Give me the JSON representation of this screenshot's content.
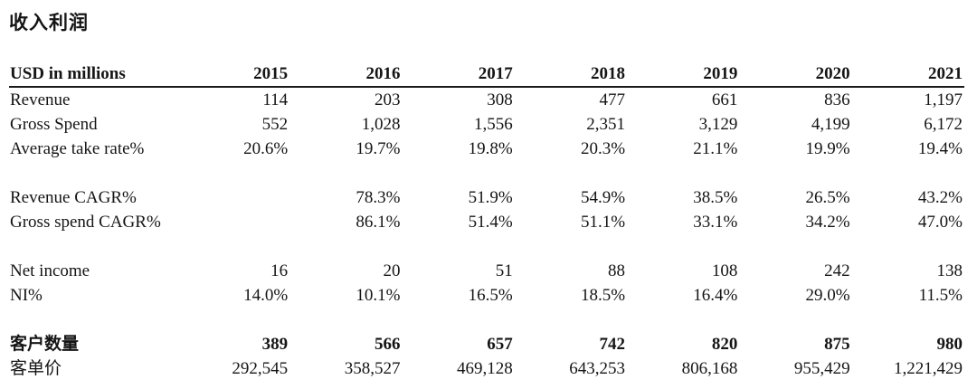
{
  "title": "收入利润",
  "table": {
    "unit_label": "USD in millions",
    "years": [
      "2015",
      "2016",
      "2017",
      "2018",
      "2019",
      "2020",
      "2021"
    ],
    "rows": [
      {
        "label": "Revenue",
        "bold": false,
        "values": [
          "114",
          "203",
          "308",
          "477",
          "661",
          "836",
          "1,197"
        ]
      },
      {
        "label": "Gross Spend",
        "bold": false,
        "values": [
          "552",
          "1,028",
          "1,556",
          "2,351",
          "3,129",
          "4,199",
          "6,172"
        ]
      },
      {
        "label": "Average take rate%",
        "bold": false,
        "values": [
          "20.6%",
          "19.7%",
          "19.8%",
          "20.3%",
          "21.1%",
          "19.9%",
          "19.4%"
        ]
      },
      {
        "spacer": true
      },
      {
        "label": "Revenue CAGR%",
        "bold": false,
        "values": [
          "",
          "78.3%",
          "51.9%",
          "54.9%",
          "38.5%",
          "26.5%",
          "43.2%"
        ]
      },
      {
        "label": "Gross spend CAGR%",
        "bold": false,
        "values": [
          "",
          "86.1%",
          "51.4%",
          "51.1%",
          "33.1%",
          "34.2%",
          "47.0%"
        ]
      },
      {
        "spacer": true
      },
      {
        "label": "Net income",
        "bold": false,
        "values": [
          "16",
          "20",
          "51",
          "88",
          "108",
          "242",
          "138"
        ]
      },
      {
        "label": "NI%",
        "bold": false,
        "values": [
          "14.0%",
          "10.1%",
          "16.5%",
          "18.5%",
          "16.4%",
          "29.0%",
          "11.5%"
        ]
      },
      {
        "spacer": true
      },
      {
        "label": "客户数量",
        "bold": true,
        "values": [
          "389",
          "566",
          "657",
          "742",
          "820",
          "875",
          "980"
        ]
      },
      {
        "label": "客单价",
        "bold": false,
        "values": [
          "292,545",
          "358,527",
          "469,128",
          "643,253",
          "806,168",
          "955,429",
          "1,221,429"
        ]
      }
    ]
  },
  "colors": {
    "text": "#151515",
    "rule": "#1a1a1a",
    "background": "#ffffff"
  }
}
